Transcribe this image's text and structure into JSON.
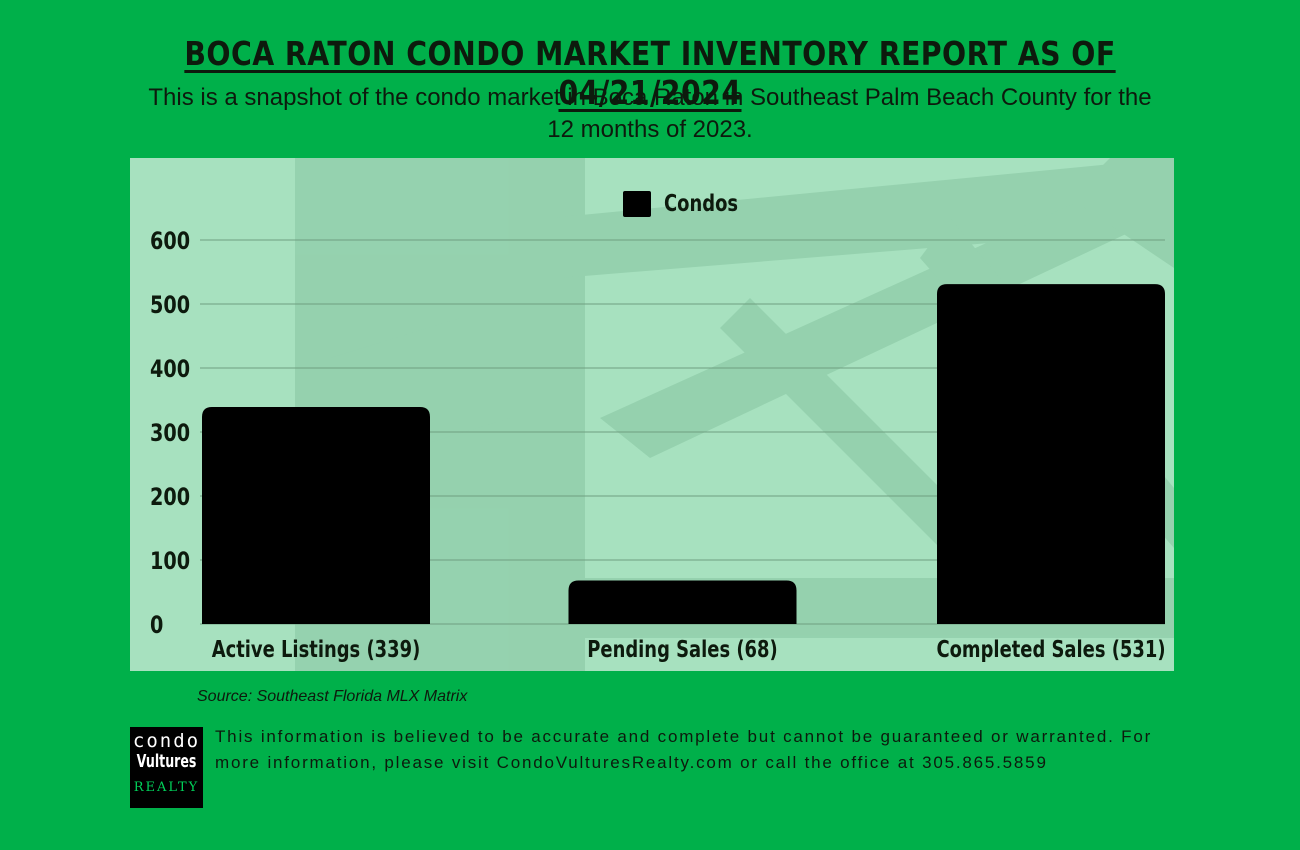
{
  "header": {
    "title": "BOCA RATON CONDO MARKET INVENTORY REPORT AS OF 04/21/2024",
    "subtitle": "This is a snapshot of the condo market in Boca Raton in Southeast Palm Beach County for the 12 months of 2023."
  },
  "chart_data": {
    "type": "bar",
    "categories": [
      "Active Listings (339)",
      "Pending Sales (68)",
      "Completed Sales (531)"
    ],
    "series": [
      {
        "name": "Condos",
        "values": [
          339,
          68,
          531
        ],
        "color": "#000000"
      }
    ],
    "ylim": [
      0,
      600
    ],
    "yticks": [
      0,
      100,
      200,
      300,
      400,
      500,
      600
    ],
    "grid": true,
    "legend": "top-center"
  },
  "footer": {
    "source": "Source: Southeast Florida MLX Matrix",
    "disclaimer": "This information is believed to be accurate and complete but cannot be guaranteed or warranted. For more information, please visit CondoVulturesRealty.com or call the office at 305.865.5859",
    "logo": {
      "line1": "condo",
      "line2": "Vultures",
      "line3": "REALTY"
    }
  },
  "colors": {
    "background": "#00b04a",
    "panel": "#a7e1bf",
    "bar": "#000000",
    "text": "#0d1a0d"
  }
}
